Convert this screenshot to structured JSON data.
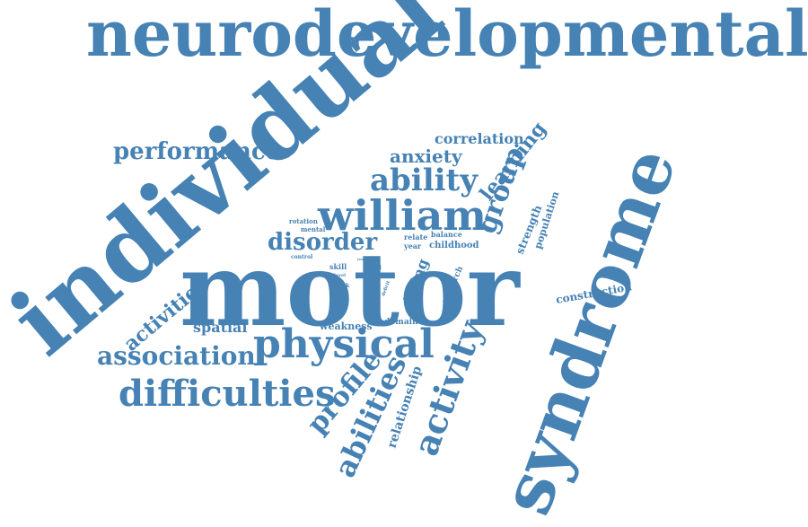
{
  "cloud": {
    "color": "#4682b4",
    "words": [
      {
        "key": "neurodevelopmental",
        "text": "neurodevelopmental"
      },
      {
        "key": "individual",
        "text": "individual"
      },
      {
        "key": "motor",
        "text": "motor"
      },
      {
        "key": "syndrome",
        "text": "syndrome"
      },
      {
        "key": "physical",
        "text": "physical"
      },
      {
        "key": "william",
        "text": "william"
      },
      {
        "key": "ability",
        "text": "ability"
      },
      {
        "key": "difficulties",
        "text": "difficulties"
      },
      {
        "key": "association",
        "text": "association"
      },
      {
        "key": "activity",
        "text": "activity"
      },
      {
        "key": "abilities",
        "text": "abilities"
      },
      {
        "key": "profile",
        "text": "profile"
      },
      {
        "key": "group",
        "text": "group"
      },
      {
        "key": "performance",
        "text": "performance"
      },
      {
        "key": "disorder",
        "text": "disorder"
      },
      {
        "key": "activities",
        "text": "activities"
      },
      {
        "key": "learning",
        "text": "learning"
      },
      {
        "key": "anxiety",
        "text": "anxiety"
      },
      {
        "key": "correlation",
        "text": "correlation"
      },
      {
        "key": "spatial",
        "text": "spatial"
      },
      {
        "key": "relationship",
        "text": "relationship"
      },
      {
        "key": "living",
        "text": "living"
      },
      {
        "key": "construction",
        "text": "construction"
      },
      {
        "key": "strength",
        "text": "strength"
      },
      {
        "key": "population",
        "text": "population"
      },
      {
        "key": "weakness",
        "text": "weakness"
      },
      {
        "key": "domain",
        "text": "domain"
      },
      {
        "key": "research",
        "text": "research"
      },
      {
        "key": "childhood",
        "text": "childhood"
      },
      {
        "key": "balance",
        "text": "balance"
      },
      {
        "key": "relate",
        "text": "relate"
      },
      {
        "key": "year",
        "text": "year"
      },
      {
        "key": "rotation",
        "text": "rotation"
      },
      {
        "key": "mental",
        "text": "mental"
      },
      {
        "key": "control",
        "text": "control"
      },
      {
        "key": "skill",
        "text": "skill"
      },
      {
        "key": "level",
        "text": "level"
      },
      {
        "key": "block",
        "text": "block"
      },
      {
        "key": "child",
        "text": "child"
      },
      {
        "key": "aged",
        "text": "aged"
      },
      {
        "key": "result",
        "text": "result"
      },
      {
        "key": "deficit",
        "text": "deficit"
      },
      {
        "key": "upper",
        "text": "upper"
      }
    ]
  }
}
